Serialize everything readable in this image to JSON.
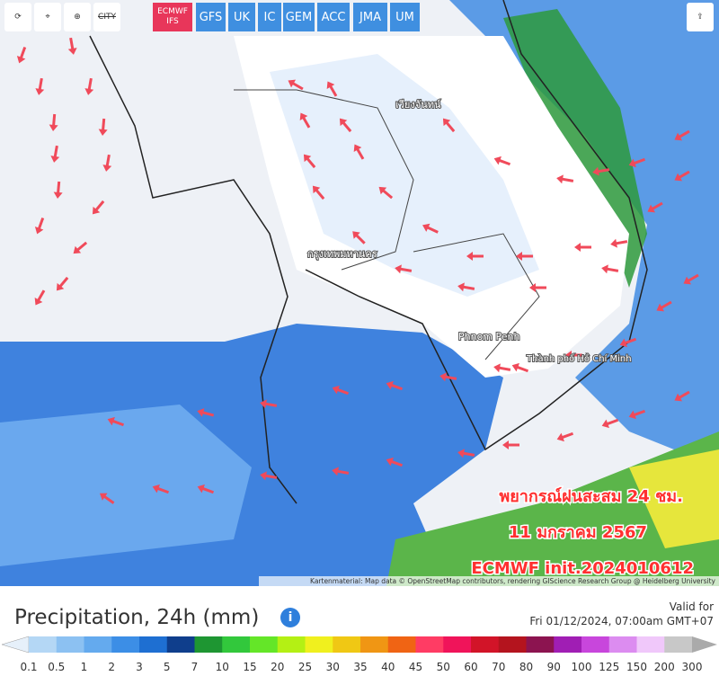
{
  "toolbar": {
    "city": "CITY",
    "models": [
      "ECMWF IFS",
      "GFS",
      "UK",
      "IC",
      "GEM",
      "ACC",
      "JMA",
      "UM"
    ]
  },
  "map": {
    "places": [
      "เวียงจันทน์",
      "กรุงเทพมหานคร",
      "Phnom Penh",
      "Thành phố Hồ Chí Minh"
    ],
    "overlay": [
      "พยากรณ์ฝนสะสม 24 ชม.",
      "11 มกราคม 2567",
      "ECMWF init.2024010612"
    ],
    "attribution": "Kartenmaterial: Map data © OpenStreetMap contributors, rendering GIScience Research Group @ Heidelberg University"
  },
  "legend": {
    "title": "Precipitation, 24h (mm)",
    "valid_label": "Valid for",
    "valid_time": "Fri 01/12/2024, 07:00am GMT+07",
    "labels": [
      0.1,
      0.5,
      1,
      2,
      3,
      5,
      7,
      10,
      15,
      20,
      25,
      30,
      35,
      40,
      45,
      50,
      60,
      70,
      80,
      90,
      100,
      125,
      150,
      200,
      300
    ],
    "colors": [
      "#b4d7f5",
      "#8cc1f2",
      "#64aaee",
      "#3c8ee6",
      "#1e6fd2",
      "#0f3e8c",
      "#1e9632",
      "#32c83c",
      "#64e628",
      "#b4f014",
      "#f0f01e",
      "#f0c814",
      "#f09614",
      "#f06414",
      "#ff3c64",
      "#f0145a",
      "#d21428",
      "#b4141e",
      "#8c1450",
      "#a01eb4",
      "#c846dc",
      "#dc8cf0",
      "#f0c8fa",
      "#c8c8c8"
    ]
  }
}
